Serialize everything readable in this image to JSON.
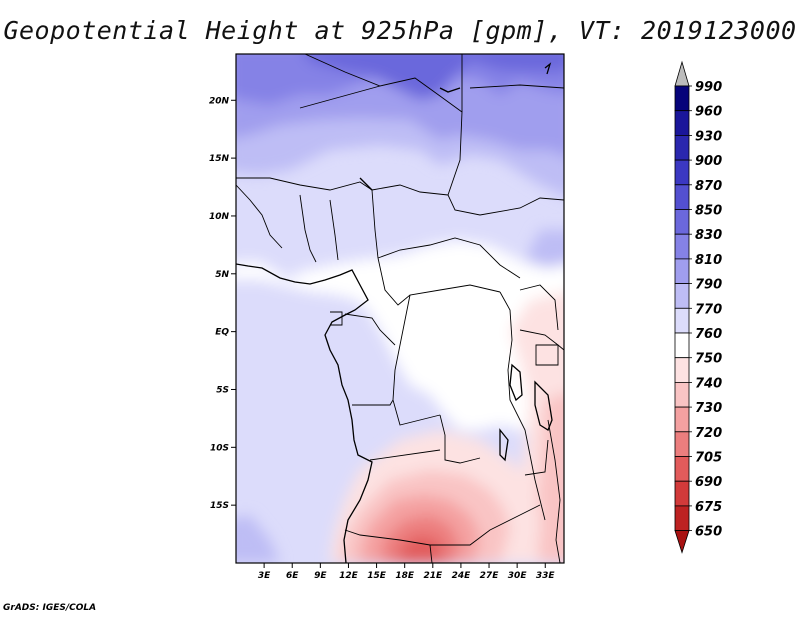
{
  "title": "Geopotential Height at 925hPa [gpm], VT: 2019123000",
  "footer": "GrADS: IGES/COLA",
  "chart_data": {
    "type": "heatmap",
    "variable": "Geopotential Height at 925hPa",
    "units": "gpm",
    "valid_time": "2019123000",
    "lon_range": [
      0,
      35
    ],
    "lat_range": [
      -20,
      24
    ],
    "x_ticks": [
      "3E",
      "6E",
      "9E",
      "12E",
      "15E",
      "18E",
      "21E",
      "24E",
      "27E",
      "30E",
      "33E"
    ],
    "y_ticks": [
      "20N",
      "15N",
      "10N",
      "5N",
      "EQ",
      "5S",
      "10S",
      "15S"
    ],
    "colorbar": {
      "levels": [
        990,
        960,
        930,
        900,
        870,
        850,
        830,
        810,
        790,
        770,
        760,
        750,
        740,
        730,
        720,
        705,
        690,
        675,
        650
      ],
      "colors": [
        "#06037a",
        "#1a169a",
        "#2a27ae",
        "#3b38c2",
        "#5350d0",
        "#6b68dc",
        "#8582e6",
        "#a09eee",
        "#bebdf5",
        "#dcdcfb",
        "#ffffff",
        "#fde2e2",
        "#f9c4c4",
        "#f4a1a1",
        "#ec7e7e",
        "#e25b5b",
        "#d23a3a",
        "#bd2222",
        "#a81212"
      ],
      "top_triangle_color": "#bcbcbc",
      "bottom_triangle_color": "#a81212"
    }
  }
}
